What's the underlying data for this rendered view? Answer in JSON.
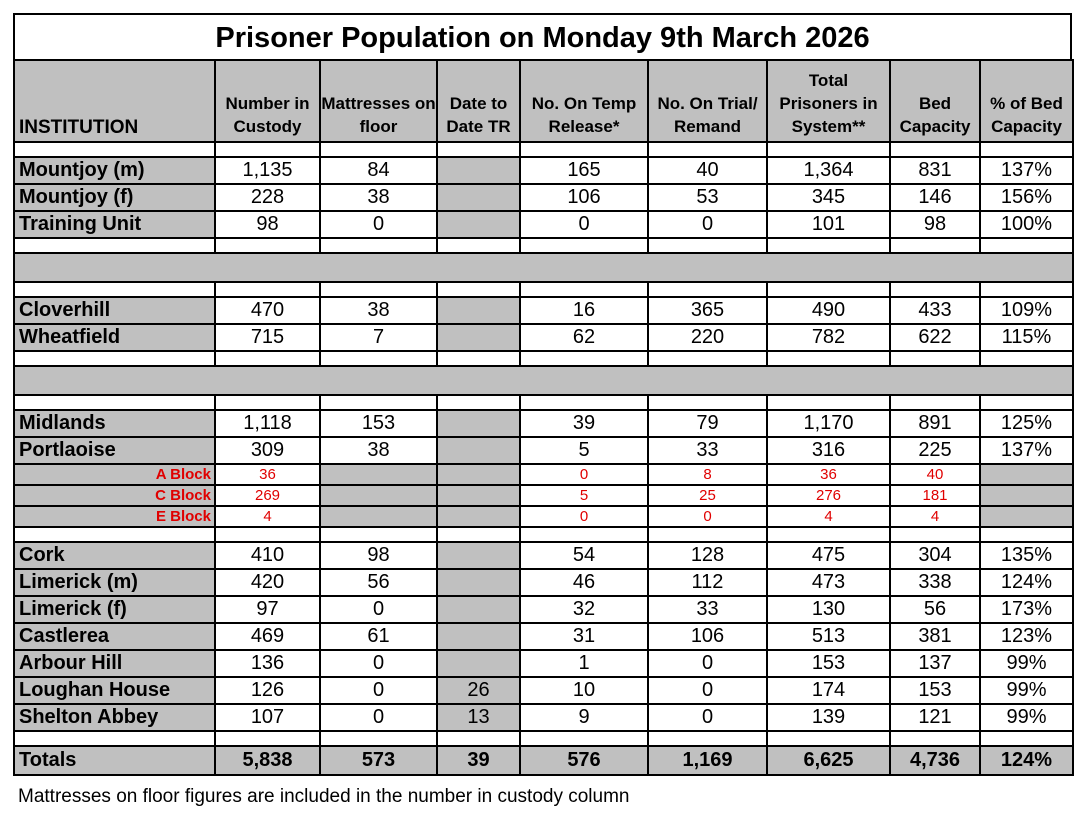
{
  "title": "Prisoner Population on Monday 9th March 2026",
  "headers": {
    "institution": "INSTITUTION",
    "custody": "Number in Custody",
    "mattresses": "Mattresses on floor",
    "date_tr": "Date to Date TR",
    "temp_release": "No. On Temp Release*",
    "trial": "No. On Trial/ Remand",
    "total": "Total Prisoners in System**",
    "bed": "Bed Capacity",
    "pct": "% of Bed Capacity"
  },
  "group1": [
    {
      "name": "Mountjoy (m)",
      "custody": "1,135",
      "mattresses": "84",
      "date_tr": "",
      "temp_release": "165",
      "trial": "40",
      "total": "1,364",
      "bed": "831",
      "pct": "137%"
    },
    {
      "name": "Mountjoy (f)",
      "custody": "228",
      "mattresses": "38",
      "date_tr": "",
      "temp_release": "106",
      "trial": "53",
      "total": "345",
      "bed": "146",
      "pct": "156%"
    },
    {
      "name": "Training Unit",
      "custody": "98",
      "mattresses": "0",
      "date_tr": "",
      "temp_release": "0",
      "trial": "0",
      "total": "101",
      "bed": "98",
      "pct": "100%"
    }
  ],
  "group2": [
    {
      "name": "Cloverhill",
      "custody": "470",
      "mattresses": "38",
      "date_tr": "",
      "temp_release": "16",
      "trial": "365",
      "total": "490",
      "bed": "433",
      "pct": "109%"
    },
    {
      "name": "Wheatfield",
      "custody": "715",
      "mattresses": "7",
      "date_tr": "",
      "temp_release": "62",
      "trial": "220",
      "total": "782",
      "bed": "622",
      "pct": "115%"
    }
  ],
  "group3": [
    {
      "name": "Midlands",
      "custody": "1,118",
      "mattresses": "153",
      "date_tr": "",
      "temp_release": "39",
      "trial": "79",
      "total": "1,170",
      "bed": "891",
      "pct": "125%"
    },
    {
      "name": "Portlaoise",
      "custody": "309",
      "mattresses": "38",
      "date_tr": "",
      "temp_release": "5",
      "trial": "33",
      "total": "316",
      "bed": "225",
      "pct": "137%"
    }
  ],
  "portlaoise_blocks": [
    {
      "name": "A Block",
      "custody": "36",
      "temp_release": "0",
      "trial": "8",
      "total": "36",
      "bed": "40"
    },
    {
      "name": "C Block",
      "custody": "269",
      "temp_release": "5",
      "trial": "25",
      "total": "276",
      "bed": "181"
    },
    {
      "name": "E Block",
      "custody": "4",
      "temp_release": "0",
      "trial": "0",
      "total": "4",
      "bed": "4"
    }
  ],
  "group4": [
    {
      "name": "Cork",
      "custody": "410",
      "mattresses": "98",
      "date_tr": "",
      "temp_release": "54",
      "trial": "128",
      "total": "475",
      "bed": "304",
      "pct": "135%"
    },
    {
      "name": "Limerick (m)",
      "custody": "420",
      "mattresses": "56",
      "date_tr": "",
      "temp_release": "46",
      "trial": "112",
      "total": "473",
      "bed": "338",
      "pct": "124%"
    },
    {
      "name": "Limerick (f)",
      "custody": "97",
      "mattresses": "0",
      "date_tr": "",
      "temp_release": "32",
      "trial": "33",
      "total": "130",
      "bed": "56",
      "pct": "173%"
    },
    {
      "name": "Castlerea",
      "custody": "469",
      "mattresses": "61",
      "date_tr": "",
      "temp_release": "31",
      "trial": "106",
      "total": "513",
      "bed": "381",
      "pct": "123%"
    },
    {
      "name": "Arbour Hill",
      "custody": "136",
      "mattresses": "0",
      "date_tr": "",
      "temp_release": "1",
      "trial": "0",
      "total": "153",
      "bed": "137",
      "pct": "99%"
    },
    {
      "name": "Loughan House",
      "custody": "126",
      "mattresses": "0",
      "date_tr": "26",
      "temp_release": "10",
      "trial": "0",
      "total": "174",
      "bed": "153",
      "pct": "99%"
    },
    {
      "name": "Shelton Abbey",
      "custody": "107",
      "mattresses": "0",
      "date_tr": "13",
      "temp_release": "9",
      "trial": "0",
      "total": "139",
      "bed": "121",
      "pct": "99%"
    }
  ],
  "totals": {
    "name": "Totals",
    "custody": "5,838",
    "mattresses": "573",
    "date_tr": "39",
    "temp_release": "576",
    "trial": "1,169",
    "total": "6,625",
    "bed": "4,736",
    "pct": "124%"
  },
  "footnote": "Mattresses on floor figures are included in the number in custody column",
  "colors": {
    "header_grey": "#c0c0c0",
    "block_red": "#e00000"
  }
}
